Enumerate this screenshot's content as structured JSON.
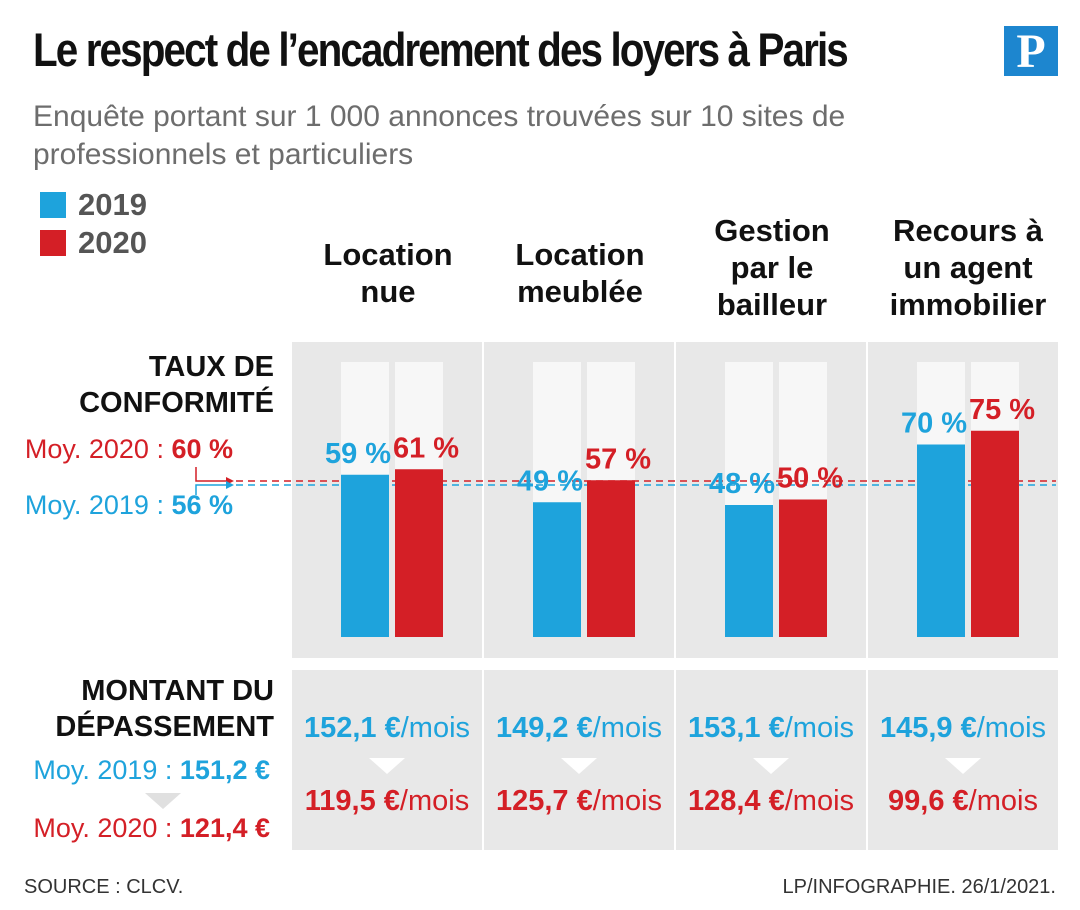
{
  "title": "Le respect de l’encadrement des loyers à Paris",
  "subtitle": "Enquête portant sur 1 000 annonces trouvées sur 10 sites de professionnels et particuliers",
  "logo_letter": "P",
  "colors": {
    "blue": "#1ea3dc",
    "red": "#d41f26",
    "panel": "#e8e8e8",
    "track": "#f7f7f7"
  },
  "legend": [
    {
      "label": "2019",
      "color": "#1ea3dc"
    },
    {
      "label": "2020",
      "color": "#d41f26"
    }
  ],
  "columns": [
    {
      "line1": "Location",
      "line2": "nue",
      "line3": ""
    },
    {
      "line1": "Location",
      "line2": "meublée",
      "line3": ""
    },
    {
      "line1": "Gestion",
      "line2": "par le",
      "line3": "bailleur"
    },
    {
      "line1": "Recours à",
      "line2": "un agent",
      "line3": "immobilier"
    }
  ],
  "taux": {
    "label_line1": "TAUX DE",
    "label_line2": "CONFORMITÉ",
    "avg2020_prefix": "Moy. 2020 : ",
    "avg2020_value": "60 %",
    "avg2019_prefix": "Moy. 2019 : ",
    "avg2019_value": "56 %"
  },
  "montant": {
    "label_line1": "MONTANT DU",
    "label_line2": "DÉPASSEMENT",
    "avg2019_prefix": "Moy. 2019 : ",
    "avg2019_value": "151,2 €",
    "avg2020_prefix": "Moy. 2020 : ",
    "avg2020_value": "121,4 €",
    "unit": "/mois",
    "values": [
      {
        "v2019": "152,1 €",
        "v2020": "119,5 €"
      },
      {
        "v2019": "149,2 €",
        "v2020": "125,7 €"
      },
      {
        "v2019": "153,1 €",
        "v2020": "128,4 €"
      },
      {
        "v2019": "145,9 €",
        "v2020": "99,6 €"
      }
    ]
  },
  "chart_data": {
    "type": "bar",
    "title": "Taux de conformité",
    "categories": [
      "Location nue",
      "Location meublée",
      "Gestion par le bailleur",
      "Recours à un agent immobilier"
    ],
    "series": [
      {
        "name": "2019",
        "values": [
          59,
          49,
          48,
          70
        ],
        "labels": [
          "59 %",
          "49 %",
          "48 %",
          "70 %"
        ]
      },
      {
        "name": "2020",
        "values": [
          61,
          57,
          50,
          75
        ],
        "labels": [
          "61 %",
          "57 %",
          "50 %",
          "75 %"
        ]
      }
    ],
    "reference_lines": [
      {
        "name": "Moy. 2020",
        "value": 60
      },
      {
        "name": "Moy. 2019",
        "value": 56
      }
    ],
    "ylim": [
      0,
      100
    ],
    "xlabel": "",
    "ylabel": ""
  },
  "footer": {
    "source": "SOURCE : CLCV.",
    "credit": "LP/INFOGRAPHIE.  26/1/2021."
  }
}
